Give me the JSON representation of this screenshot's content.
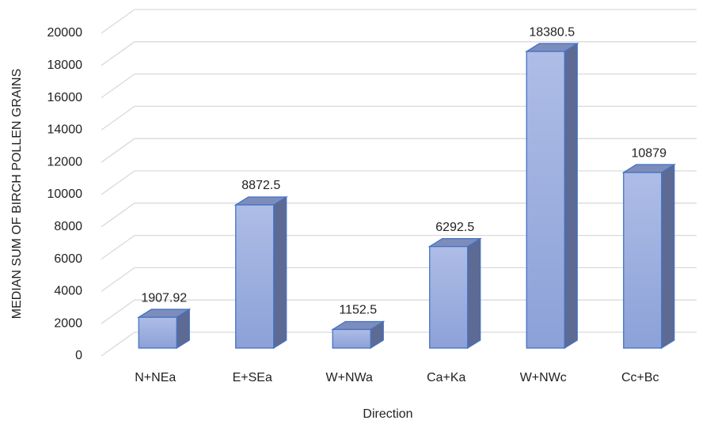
{
  "chart_data": {
    "type": "bar3d",
    "categories": [
      "N+NEa",
      "E+SEa",
      "W+NWa",
      "Ca+Ka",
      "W+NWc",
      "Cc+Bc"
    ],
    "values": [
      1907.92,
      8872.5,
      1152.5,
      6292.5,
      18380.5,
      10879
    ],
    "color": "#8ea3d8",
    "xlabel": "Direction",
    "ylabel": "MEDIAN SUM OF BIRCH POLLEN GRAINS",
    "ylim": [
      0,
      20000
    ],
    "yticks": [
      0,
      2000,
      4000,
      6000,
      8000,
      10000,
      12000,
      14000,
      16000,
      18000,
      20000
    ],
    "grid": true
  }
}
